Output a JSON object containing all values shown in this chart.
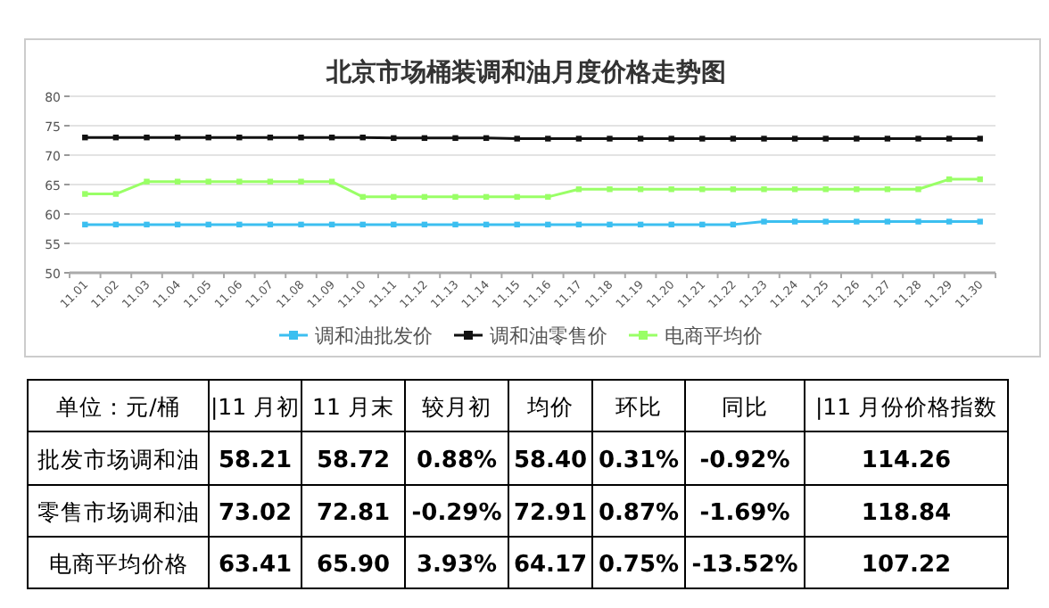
{
  "chart_data": [
    {
      "type": "line",
      "title": "北京市场桶装调和油月度价格走势图",
      "categories": [
        "11.01",
        "11.02",
        "11.03",
        "11.04",
        "11.05",
        "11.06",
        "11.07",
        "11.08",
        "11.09",
        "11.10",
        "11.11",
        "11.12",
        "11.13",
        "11.14",
        "11.15",
        "11.16",
        "11.17",
        "11.18",
        "11.19",
        "11.20",
        "11.21",
        "11.22",
        "11.23",
        "11.24",
        "11.25",
        "11.26",
        "11.27",
        "11.28",
        "11.29",
        "11.30"
      ],
      "series": [
        {
          "name": "调和油批发价",
          "color": "#3cbff0",
          "values": [
            58.2,
            58.2,
            58.2,
            58.2,
            58.2,
            58.2,
            58.2,
            58.2,
            58.2,
            58.2,
            58.2,
            58.2,
            58.2,
            58.2,
            58.2,
            58.2,
            58.2,
            58.2,
            58.2,
            58.2,
            58.2,
            58.2,
            58.7,
            58.7,
            58.7,
            58.7,
            58.7,
            58.7,
            58.7,
            58.7
          ]
        },
        {
          "name": "调和油零售价",
          "color": "#111111",
          "values": [
            73.0,
            73.0,
            73.0,
            73.0,
            73.0,
            73.0,
            73.0,
            73.0,
            73.0,
            73.0,
            72.9,
            72.9,
            72.9,
            72.9,
            72.8,
            72.8,
            72.8,
            72.8,
            72.8,
            72.8,
            72.8,
            72.8,
            72.8,
            72.8,
            72.8,
            72.8,
            72.8,
            72.8,
            72.8,
            72.8
          ]
        },
        {
          "name": "电商平均价",
          "color": "#99ff66",
          "values": [
            63.4,
            63.4,
            65.5,
            65.5,
            65.5,
            65.5,
            65.5,
            65.5,
            65.5,
            62.9,
            62.9,
            62.9,
            62.9,
            62.9,
            62.9,
            62.9,
            64.2,
            64.2,
            64.2,
            64.2,
            64.2,
            64.2,
            64.2,
            64.2,
            64.2,
            64.2,
            64.2,
            64.2,
            65.9,
            65.9
          ]
        }
      ],
      "ylim": [
        50,
        80
      ],
      "yticks": [
        50,
        55,
        60,
        65,
        70,
        75,
        80
      ],
      "grid": "y",
      "legend": "bottom",
      "marker": "square"
    },
    {
      "type": "other",
      "annotations": [
        "单位：元/桶",
        "|11 月初",
        "11 月末",
        "较月初",
        "均价",
        "环比",
        "同比",
        "|11 月份价格指数",
        "批发市场调和油",
        "58.21",
        "58.72",
        "0.88%",
        "58.40",
        "0.31%",
        "-0.92%",
        "114.26",
        "零售市场调和油",
        "73.02",
        "72.81",
        "-0.29%",
        "72.91",
        "0.87%",
        "-1.69%",
        "118.84",
        "电商平均价格",
        "63.41",
        "65.90",
        "3.93%",
        "64.17",
        "0.75%",
        "-13.52%",
        "107.22"
      ]
    }
  ]
}
